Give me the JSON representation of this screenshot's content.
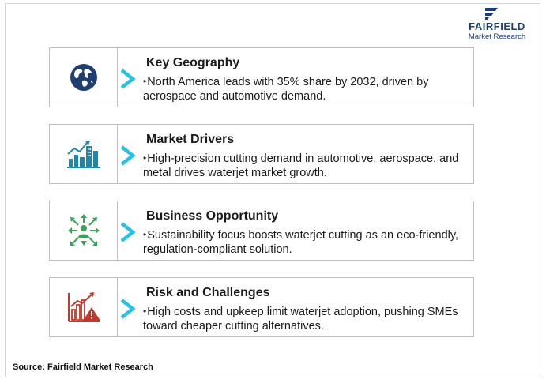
{
  "brand": {
    "name": "FAIRFIELD",
    "tagline": "Market Research"
  },
  "cards": [
    {
      "title": "Key Geography",
      "bullet": "•",
      "text": "North America leads with 35% share by 2032, driven by aerospace and automotive demand.",
      "icon": "globe-icon"
    },
    {
      "title": "Market Drivers",
      "bullet": "•",
      "text": "High-precision cutting demand in automotive, aerospace, and metal drives waterjet market growth.",
      "icon": "growth-city-icon"
    },
    {
      "title": "Business Opportunity",
      "bullet": "•",
      "text": "Sustainability focus boosts waterjet cutting as an eco-friendly, regulation-compliant solution.",
      "icon": "opportunity-arrows-icon"
    },
    {
      "title": "Risk and Challenges",
      "bullet": "•",
      "text": "High costs and upkeep limit waterjet adoption, pushing SMEs toward cheaper cutting alternatives.",
      "icon": "risk-warning-icon"
    }
  ],
  "source": "Source: Fairfield Market Research",
  "colors": {
    "navy": "#1f3f73",
    "teal": "#1e88a8",
    "cyan_chevron": "#29c1e3",
    "green": "#3aa35a",
    "red": "#c0392b"
  }
}
